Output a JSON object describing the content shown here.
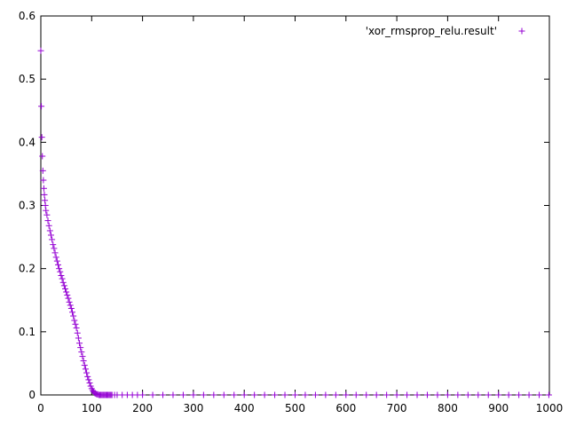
{
  "chart_data": {
    "type": "scatter",
    "title": "",
    "xlabel": "",
    "ylabel": "",
    "xlim": [
      0,
      1000
    ],
    "ylim": [
      0,
      0.6
    ],
    "xticks": [
      0,
      100,
      200,
      300,
      400,
      500,
      600,
      700,
      800,
      900,
      1000
    ],
    "yticks": [
      0,
      0.1,
      0.2,
      0.3,
      0.4,
      0.5,
      0.6
    ],
    "xtick_labels": [
      "0",
      "100",
      "200",
      "300",
      "400",
      "500",
      "600",
      "700",
      "800",
      "900",
      "1000"
    ],
    "ytick_labels": [
      "0",
      "0.1",
      "0.2",
      "0.3",
      "0.4",
      "0.5",
      "0.6"
    ],
    "grid": false,
    "legend": {
      "placement": "top-right"
    },
    "marker": "plus",
    "series": [
      {
        "name": "'xor_rmsprop_relu.result'",
        "color": "#9400d3",
        "x": [
          0,
          1,
          2,
          3,
          4,
          5,
          6,
          7,
          8,
          9,
          10,
          12,
          14,
          16,
          18,
          20,
          22,
          24,
          26,
          28,
          30,
          32,
          34,
          36,
          38,
          40,
          42,
          44,
          46,
          48,
          50,
          52,
          54,
          56,
          58,
          60,
          62,
          64,
          66,
          68,
          70,
          72,
          74,
          76,
          78,
          80,
          82,
          84,
          86,
          88,
          90,
          92,
          94,
          96,
          98,
          100,
          102,
          104,
          106,
          108,
          110,
          112,
          114,
          116,
          118,
          120,
          122,
          124,
          126,
          128,
          130,
          132,
          134,
          136,
          138,
          140,
          145,
          150,
          160,
          170,
          180,
          190,
          200,
          220,
          240,
          260,
          280,
          300,
          320,
          340,
          360,
          380,
          400,
          420,
          440,
          460,
          480,
          500,
          520,
          540,
          560,
          580,
          600,
          620,
          640,
          660,
          680,
          700,
          720,
          740,
          760,
          780,
          800,
          820,
          840,
          860,
          880,
          900,
          920,
          940,
          960,
          980,
          999
        ],
        "y": [
          0.545,
          0.457,
          0.408,
          0.378,
          0.355,
          0.34,
          0.327,
          0.317,
          0.308,
          0.3,
          0.292,
          0.285,
          0.276,
          0.268,
          0.26,
          0.253,
          0.246,
          0.238,
          0.232,
          0.225,
          0.218,
          0.212,
          0.206,
          0.2,
          0.195,
          0.189,
          0.184,
          0.178,
          0.173,
          0.168,
          0.163,
          0.158,
          0.153,
          0.147,
          0.142,
          0.137,
          0.131,
          0.125,
          0.118,
          0.112,
          0.106,
          0.098,
          0.09,
          0.082,
          0.075,
          0.068,
          0.061,
          0.054,
          0.047,
          0.041,
          0.035,
          0.029,
          0.024,
          0.019,
          0.014,
          0.01,
          0.007,
          0.005,
          0.003,
          0.002,
          0.001,
          0.001,
          0.0,
          0.0,
          0.0,
          0.0,
          0.0,
          0.0,
          0.0,
          0.0,
          0.0,
          0.0,
          0.0,
          0.0,
          0.0,
          0.0,
          0.0,
          0.0,
          0.0,
          0.0,
          0.0,
          0.0,
          0.0,
          0.0,
          0.0,
          0.0,
          0.0,
          0.0,
          0.0,
          0.0,
          0.0,
          0.0,
          0.0,
          0.0,
          0.0,
          0.0,
          0.0,
          0.0,
          0.0,
          0.0,
          0.0,
          0.0,
          0.0,
          0.0,
          0.0,
          0.0,
          0.0,
          0.0,
          0.0,
          0.0,
          0.0,
          0.0,
          0.0,
          0.0,
          0.0,
          0.0,
          0.0,
          0.0,
          0.0,
          0.0,
          0.0,
          0.0,
          0.0
        ]
      }
    ]
  }
}
